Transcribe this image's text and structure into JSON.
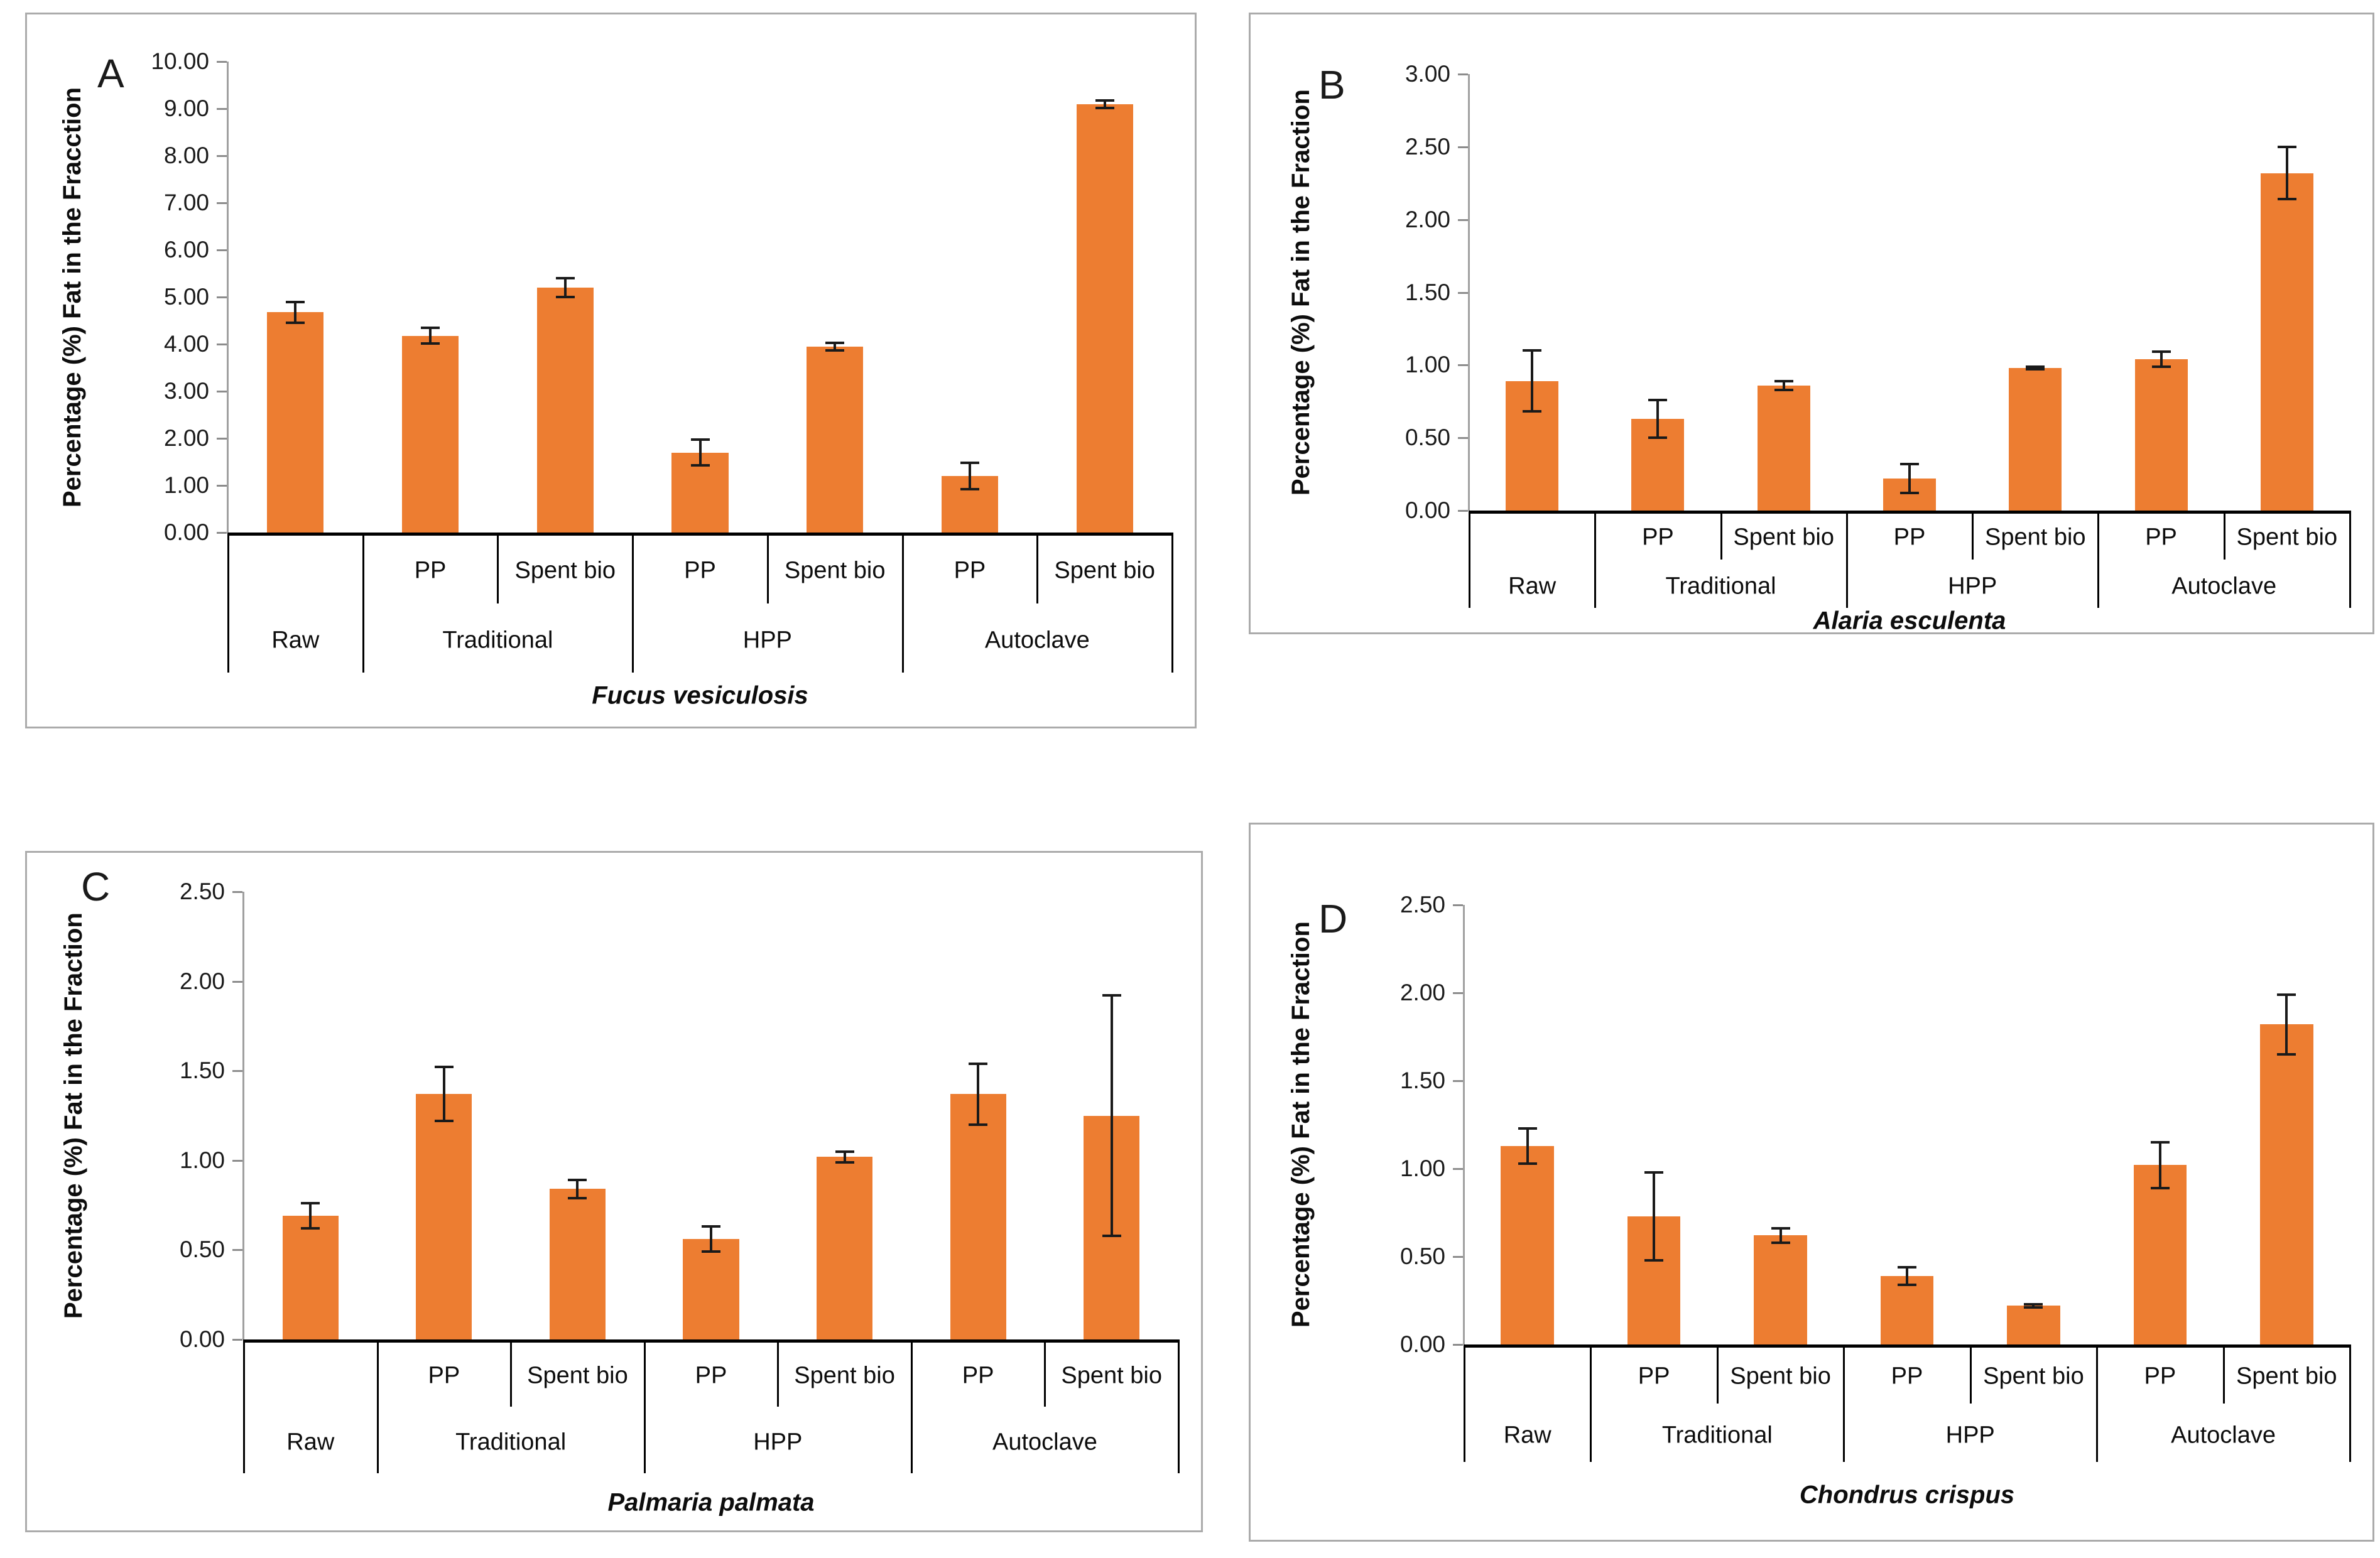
{
  "figure": {
    "description": "Four-panel bar chart figure of fat percentage in fractions of four seaweed species after different treatments",
    "background_color": "#ffffff",
    "bar_color": "#ED7D31",
    "error_bar_color": "#1a1a1a",
    "y_axis_line_color": "#a0a0a0",
    "baseline_color": "#000000",
    "category_line_color": "#000000",
    "panel_border_color": "#ababab"
  },
  "chart_data": [
    {
      "panel_letter": "A",
      "type": "bar",
      "xlabel": "Fucus vesiculosis",
      "ylabel": "Percentage (%) Fat in the Fracction",
      "ylim": [
        0,
        10.0
      ],
      "ystep": 1.0,
      "tick_decimals": 2,
      "grid": false,
      "legend": false,
      "groups": [
        {
          "label": "Raw",
          "bars": [
            {
              "sub_label": "",
              "value": 4.68,
              "error": 0.22
            }
          ]
        },
        {
          "label": "Traditional",
          "bars": [
            {
              "sub_label": "PP",
              "value": 4.18,
              "error": 0.17
            },
            {
              "sub_label": "Spent bio",
              "value": 5.2,
              "error": 0.2
            }
          ]
        },
        {
          "label": "HPP",
          "bars": [
            {
              "sub_label": "PP",
              "value": 1.7,
              "error": 0.27
            },
            {
              "sub_label": "Spent bio",
              "value": 3.95,
              "error": 0.08
            }
          ]
        },
        {
          "label": "Autoclave",
          "bars": [
            {
              "sub_label": "PP",
              "value": 1.2,
              "error": 0.28
            },
            {
              "sub_label": "Spent bio",
              "value": 9.1,
              "error": 0.08
            }
          ]
        }
      ]
    },
    {
      "panel_letter": "B",
      "type": "bar",
      "xlabel": "Alaria esculenta",
      "ylabel": "Percentage (%) Fat in the Fraction",
      "ylim": [
        0,
        3.0
      ],
      "ystep": 0.5,
      "tick_decimals": 2,
      "grid": false,
      "legend": false,
      "groups": [
        {
          "label": "Raw",
          "bars": [
            {
              "sub_label": "",
              "value": 0.89,
              "error": 0.21
            }
          ]
        },
        {
          "label": "Traditional",
          "bars": [
            {
              "sub_label": "PP",
              "value": 0.63,
              "error": 0.13
            },
            {
              "sub_label": "Spent bio",
              "value": 0.86,
              "error": 0.03
            }
          ]
        },
        {
          "label": "HPP",
          "bars": [
            {
              "sub_label": "PP",
              "value": 0.22,
              "error": 0.1
            },
            {
              "sub_label": "Spent bio",
              "value": 0.98,
              "error": 0.01
            }
          ]
        },
        {
          "label": "Autoclave",
          "bars": [
            {
              "sub_label": "PP",
              "value": 1.04,
              "error": 0.05
            },
            {
              "sub_label": "Spent bio",
              "value": 2.32,
              "error": 0.18
            }
          ]
        }
      ]
    },
    {
      "panel_letter": "C",
      "type": "bar",
      "xlabel": "Palmaria palmata",
      "ylabel": "Percentage (%) Fat in the Fraction",
      "ylim": [
        0,
        2.5
      ],
      "ystep": 0.5,
      "tick_decimals": 2,
      "grid": false,
      "legend": false,
      "groups": [
        {
          "label": "Raw",
          "bars": [
            {
              "sub_label": "",
              "value": 0.69,
              "error": 0.07
            }
          ]
        },
        {
          "label": "Traditional",
          "bars": [
            {
              "sub_label": "PP",
              "value": 1.37,
              "error": 0.15
            },
            {
              "sub_label": "Spent bio",
              "value": 0.84,
              "error": 0.05
            }
          ]
        },
        {
          "label": "HPP",
          "bars": [
            {
              "sub_label": "PP",
              "value": 0.56,
              "error": 0.07
            },
            {
              "sub_label": "Spent bio",
              "value": 1.02,
              "error": 0.03
            }
          ]
        },
        {
          "label": "Autoclave",
          "bars": [
            {
              "sub_label": "PP",
              "value": 1.37,
              "error": 0.17
            },
            {
              "sub_label": "Spent bio",
              "value": 1.25,
              "error": 0.67
            }
          ]
        }
      ]
    },
    {
      "panel_letter": "D",
      "type": "bar",
      "xlabel": "Chondrus crispus",
      "ylabel": "Percentage (%) Fat in the Fraction",
      "ylim": [
        0,
        2.5
      ],
      "ystep": 0.5,
      "tick_decimals": 2,
      "grid": false,
      "legend": false,
      "groups": [
        {
          "label": "Raw",
          "bars": [
            {
              "sub_label": "",
              "value": 1.13,
              "error": 0.1
            }
          ]
        },
        {
          "label": "Traditional",
          "bars": [
            {
              "sub_label": "PP",
              "value": 0.73,
              "error": 0.25
            },
            {
              "sub_label": "Spent bio",
              "value": 0.62,
              "error": 0.04
            }
          ]
        },
        {
          "label": "HPP",
          "bars": [
            {
              "sub_label": "PP",
              "value": 0.39,
              "error": 0.05
            },
            {
              "sub_label": "Spent bio",
              "value": 0.22,
              "error": 0.01
            }
          ]
        },
        {
          "label": "Autoclave",
          "bars": [
            {
              "sub_label": "PP",
              "value": 1.02,
              "error": 0.13
            },
            {
              "sub_label": "Spent bio",
              "value": 1.82,
              "error": 0.17
            }
          ]
        }
      ]
    }
  ]
}
